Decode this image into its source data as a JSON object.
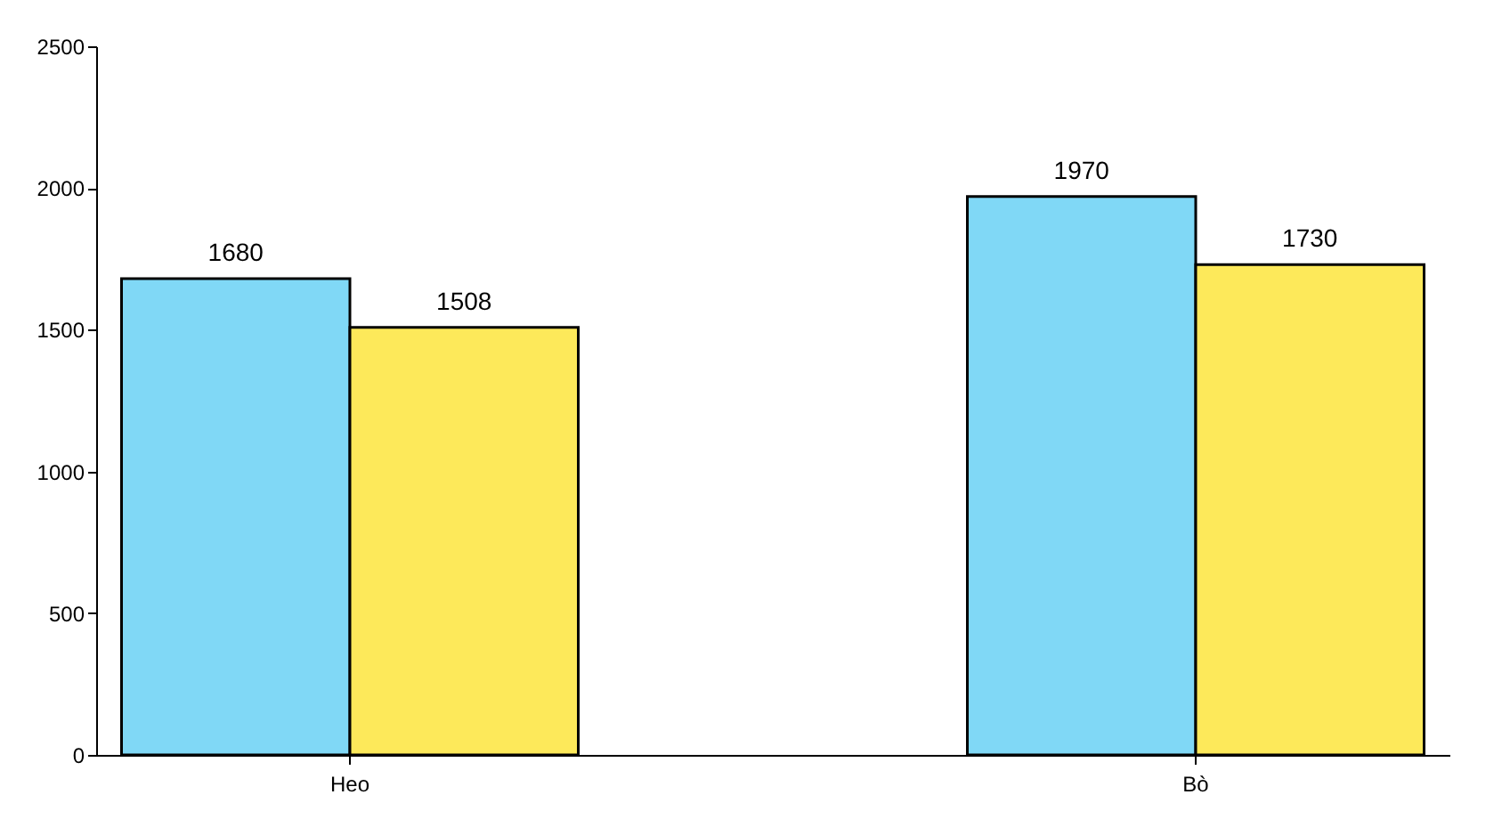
{
  "chart_data": {
    "type": "bar",
    "categories": [
      "Heo",
      "Bò"
    ],
    "series": [
      {
        "color": "#80d8f6",
        "values": [
          1680,
          1970
        ]
      },
      {
        "color": "#fde95a",
        "values": [
          1508,
          1730
        ]
      }
    ],
    "ylim": [
      0,
      2500
    ],
    "yticks": [
      0,
      500,
      1000,
      1500,
      2000,
      2500
    ],
    "data_labels": true,
    "grid": false,
    "legend": false
  }
}
